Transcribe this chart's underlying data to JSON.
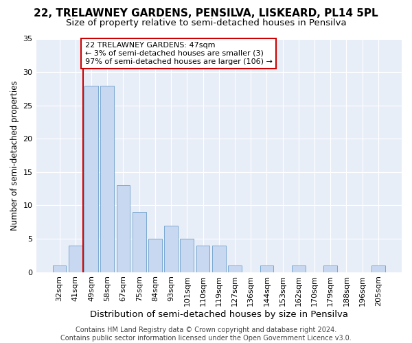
{
  "title": "22, TRELAWNEY GARDENS, PENSILVA, LISKEARD, PL14 5PL",
  "subtitle": "Size of property relative to semi-detached houses in Pensilva",
  "xlabel": "Distribution of semi-detached houses by size in Pensilva",
  "ylabel": "Number of semi-detached properties",
  "categories": [
    "32sqm",
    "41sqm",
    "49sqm",
    "58sqm",
    "67sqm",
    "75sqm",
    "84sqm",
    "93sqm",
    "101sqm",
    "110sqm",
    "119sqm",
    "127sqm",
    "136sqm",
    "144sqm",
    "153sqm",
    "162sqm",
    "170sqm",
    "179sqm",
    "188sqm",
    "196sqm",
    "205sqm"
  ],
  "values": [
    1,
    4,
    28,
    28,
    13,
    9,
    5,
    7,
    5,
    4,
    4,
    1,
    0,
    1,
    0,
    1,
    0,
    1,
    0,
    0,
    1
  ],
  "bar_color": "#c8d8f0",
  "bar_edge_color": "#7aa8d0",
  "highlight_line_index": 2,
  "highlight_color": "#cc0000",
  "annotation_text": "22 TRELAWNEY GARDENS: 47sqm\n← 3% of semi-detached houses are smaller (3)\n97% of semi-detached houses are larger (106) →",
  "annotation_box_facecolor": "#ffffff",
  "annotation_box_edgecolor": "#cc0000",
  "ylim": [
    0,
    35
  ],
  "yticks": [
    0,
    5,
    10,
    15,
    20,
    25,
    30,
    35
  ],
  "title_fontsize": 11,
  "subtitle_fontsize": 9.5,
  "xlabel_fontsize": 9.5,
  "ylabel_fontsize": 8.5,
  "tick_fontsize": 8,
  "annot_fontsize": 8,
  "footer_text": "Contains HM Land Registry data © Crown copyright and database right 2024.\nContains public sector information licensed under the Open Government Licence v3.0.",
  "footer_fontsize": 7,
  "bg_color": "#ffffff",
  "plot_bg_color": "#e8eef8",
  "grid_color": "#ffffff"
}
